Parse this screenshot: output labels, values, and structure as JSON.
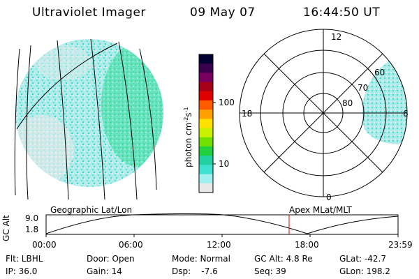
{
  "header": {
    "instrument": "Ultraviolet Imager",
    "date": "09 May 07",
    "time": "16:44:50 UT"
  },
  "colorbar": {
    "label": "photon cm^-2 s^-1",
    "label_main": "photon cm",
    "label_exp1": "-2",
    "label_s": "s",
    "label_exp2": "-1",
    "ticks": [
      "100",
      "10"
    ],
    "colors": [
      "#000033",
      "#3a0050",
      "#7a0060",
      "#a80018",
      "#e00000",
      "#ff5a00",
      "#ffa000",
      "#ffe000",
      "#c8f000",
      "#70e000",
      "#20d040",
      "#20d0a0",
      "#40e0d0",
      "#a0f0f0",
      "#e8e8e8"
    ]
  },
  "polar_plot": {
    "mlt_labels": [
      "12",
      "18",
      "6",
      "0"
    ],
    "lat_labels": [
      "60",
      "70",
      "80"
    ]
  },
  "timeline": {
    "left_label": "Geographic Lat/Lon",
    "right_label": "Apex MLat/MLT",
    "y_axis_label": "GC Alt",
    "y_ticks": [
      "9.0",
      "1.8"
    ],
    "x_ticks": [
      "00:00",
      "06:00",
      "12:00",
      "18:00",
      "23:59"
    ],
    "marker_color": "#e00000"
  },
  "info": {
    "filter": "Flt: LBHL",
    "ip": "IP: 36.0",
    "door": "Door: Open",
    "gain": "Gain: 14",
    "mode": "Mode: Normal",
    "dsp": "Dsp:    -7.6",
    "gc_alt": "GC Alt: 4.8 Re",
    "seq": "Seq: 39",
    "glat": "GLat: -42.7",
    "glon": "GLon: 198.2"
  }
}
